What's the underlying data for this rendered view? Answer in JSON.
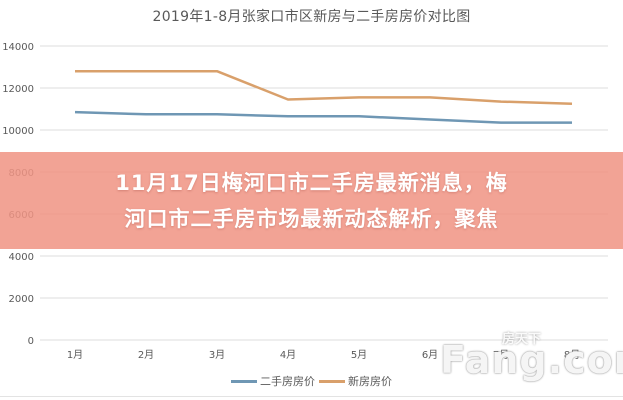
{
  "chart_data": {
    "type": "line",
    "title": "2019年1-8月张家口市区新房与二手房房价对比图",
    "xlabel": "",
    "ylabel": "",
    "categories": [
      "1月",
      "2月",
      "3月",
      "4月",
      "5月",
      "6月",
      "7月",
      "8月"
    ],
    "series": [
      {
        "name": "二手房房价",
        "color": "#6f97b4",
        "values": [
          10850,
          10750,
          10750,
          10650,
          10650,
          10500,
          10350,
          10350
        ]
      },
      {
        "name": "新房房价",
        "color": "#d9a06b",
        "values": [
          12800,
          12800,
          12800,
          11450,
          11550,
          11550,
          11350,
          11250
        ]
      }
    ],
    "ylim": [
      0,
      14000
    ],
    "yticks": [
      "0",
      "2000",
      "4000",
      "6000",
      "8000",
      "10000",
      "12000",
      "14000"
    ],
    "grid": true,
    "legend_position": "bottom"
  },
  "overlay": {
    "headline_line1": "11月17日梅河口市二手房最新消息，梅",
    "headline_line2": "河口市二手房市场最新动态解析，聚焦",
    "background_color": "#f09484"
  },
  "watermark": {
    "brand": "Fang.com",
    "brand_cn": "房天下"
  }
}
